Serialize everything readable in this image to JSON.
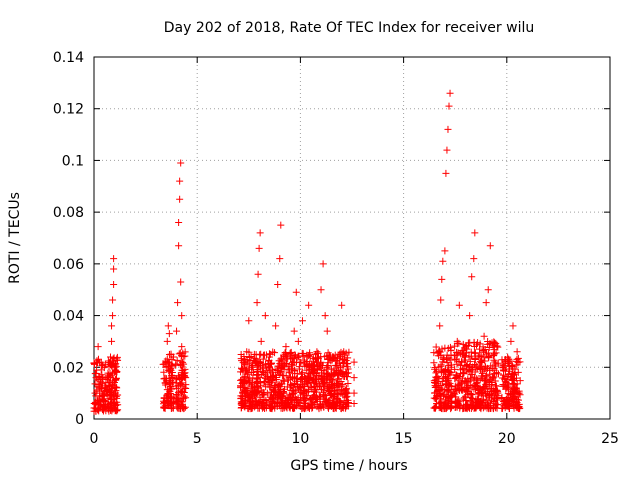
{
  "chart_data": {
    "type": "scatter",
    "title": "Day 202 of 2018, Rate Of TEC Index for receiver wilu",
    "xlabel": "GPS time / hours",
    "ylabel": "ROTI / TECUs",
    "xlim": [
      0,
      25
    ],
    "ylim": [
      0,
      0.14
    ],
    "x_ticks": [
      0,
      5,
      10,
      15,
      20,
      25
    ],
    "y_ticks": [
      0,
      0.02,
      0.04,
      0.06,
      0.08,
      0.1,
      0.12,
      0.14
    ],
    "x_tick_labels": [
      "0",
      "5",
      "10",
      "15",
      "20",
      "25"
    ],
    "y_tick_labels": [
      "0",
      "0.02",
      "0.04",
      "0.06",
      "0.08",
      "0.1",
      "0.12",
      "0.14"
    ],
    "grid": true,
    "marker": "+",
    "color": "#ff0000",
    "points": [
      [
        0.05,
        0.01
      ],
      [
        0.1,
        0.016
      ],
      [
        0.15,
        0.022
      ],
      [
        0.2,
        0.028
      ],
      [
        0.25,
        0.012
      ],
      [
        0.3,
        0.007
      ],
      [
        0.35,
        0.019
      ],
      [
        0.4,
        0.014
      ],
      [
        0.5,
        0.009
      ],
      [
        0.55,
        0.021
      ],
      [
        0.6,
        0.011
      ],
      [
        0.65,
        0.005
      ],
      [
        0.7,
        0.017
      ],
      [
        0.75,
        0.013
      ],
      [
        0.8,
        0.024
      ],
      [
        0.85,
        0.03
      ],
      [
        0.85,
        0.036
      ],
      [
        0.9,
        0.04
      ],
      [
        0.9,
        0.046
      ],
      [
        0.95,
        0.052
      ],
      [
        0.95,
        0.058
      ],
      [
        0.95,
        0.062
      ],
      [
        1.0,
        0.02
      ],
      [
        1.0,
        0.01
      ],
      [
        1.05,
        0.015
      ],
      [
        1.1,
        0.008
      ],
      [
        3.4,
        0.008
      ],
      [
        3.45,
        0.014
      ],
      [
        3.5,
        0.02
      ],
      [
        3.55,
        0.03
      ],
      [
        3.6,
        0.036
      ],
      [
        3.65,
        0.033
      ],
      [
        3.7,
        0.012
      ],
      [
        3.75,
        0.006
      ],
      [
        3.8,
        0.018
      ],
      [
        3.85,
        0.024
      ],
      [
        4.0,
        0.034
      ],
      [
        4.05,
        0.045
      ],
      [
        4.1,
        0.067
      ],
      [
        4.1,
        0.076
      ],
      [
        4.15,
        0.085
      ],
      [
        4.15,
        0.092
      ],
      [
        4.2,
        0.099
      ],
      [
        4.2,
        0.053
      ],
      [
        4.25,
        0.04
      ],
      [
        4.25,
        0.028
      ],
      [
        4.3,
        0.016
      ],
      [
        4.35,
        0.008
      ],
      [
        4.4,
        0.012
      ],
      [
        7.2,
        0.01
      ],
      [
        7.3,
        0.016
      ],
      [
        7.4,
        0.026
      ],
      [
        7.5,
        0.038
      ],
      [
        7.6,
        0.008
      ],
      [
        7.7,
        0.02
      ],
      [
        7.8,
        0.012
      ],
      [
        7.9,
        0.045
      ],
      [
        7.95,
        0.056
      ],
      [
        8.0,
        0.066
      ],
      [
        8.05,
        0.072
      ],
      [
        8.1,
        0.03
      ],
      [
        8.2,
        0.018
      ],
      [
        8.3,
        0.04
      ],
      [
        8.4,
        0.01
      ],
      [
        8.5,
        0.024
      ],
      [
        8.6,
        0.014
      ],
      [
        8.8,
        0.036
      ],
      [
        8.9,
        0.052
      ],
      [
        9.0,
        0.062
      ],
      [
        9.05,
        0.075
      ],
      [
        9.1,
        0.02
      ],
      [
        9.2,
        0.01
      ],
      [
        9.3,
        0.028
      ],
      [
        9.5,
        0.016
      ],
      [
        9.7,
        0.034
      ],
      [
        9.8,
        0.049
      ],
      [
        9.9,
        0.03
      ],
      [
        10.0,
        0.012
      ],
      [
        10.1,
        0.038
      ],
      [
        10.2,
        0.022
      ],
      [
        10.4,
        0.044
      ],
      [
        10.5,
        0.008
      ],
      [
        10.6,
        0.018
      ],
      [
        10.8,
        0.026
      ],
      [
        11.0,
        0.05
      ],
      [
        11.1,
        0.06
      ],
      [
        11.2,
        0.04
      ],
      [
        11.3,
        0.034
      ],
      [
        11.4,
        0.014
      ],
      [
        11.6,
        0.024
      ],
      [
        11.8,
        0.008
      ],
      [
        12.0,
        0.044
      ],
      [
        12.1,
        0.026
      ],
      [
        12.2,
        0.018
      ],
      [
        12.3,
        0.01
      ],
      [
        12.6,
        0.016
      ],
      [
        12.6,
        0.022
      ],
      [
        12.6,
        0.01
      ],
      [
        12.6,
        0.006
      ],
      [
        16.5,
        0.01
      ],
      [
        16.6,
        0.016
      ],
      [
        16.7,
        0.026
      ],
      [
        16.75,
        0.036
      ],
      [
        16.8,
        0.046
      ],
      [
        16.85,
        0.054
      ],
      [
        16.9,
        0.061
      ],
      [
        17.0,
        0.065
      ],
      [
        17.05,
        0.095
      ],
      [
        17.1,
        0.104
      ],
      [
        17.15,
        0.112
      ],
      [
        17.2,
        0.121
      ],
      [
        17.25,
        0.126
      ],
      [
        17.3,
        0.02
      ],
      [
        17.4,
        0.01
      ],
      [
        17.6,
        0.03
      ],
      [
        17.7,
        0.044
      ],
      [
        17.8,
        0.014
      ],
      [
        18.0,
        0.024
      ],
      [
        18.2,
        0.04
      ],
      [
        18.3,
        0.055
      ],
      [
        18.4,
        0.062
      ],
      [
        18.45,
        0.072
      ],
      [
        18.5,
        0.02
      ],
      [
        18.7,
        0.012
      ],
      [
        18.9,
        0.032
      ],
      [
        19.0,
        0.045
      ],
      [
        19.1,
        0.05
      ],
      [
        19.2,
        0.067
      ],
      [
        19.3,
        0.016
      ],
      [
        19.5,
        0.008
      ],
      [
        19.8,
        0.02
      ],
      [
        20.0,
        0.012
      ],
      [
        20.2,
        0.03
      ],
      [
        20.3,
        0.036
      ],
      [
        20.4,
        0.018
      ],
      [
        20.5,
        0.026
      ],
      [
        20.6,
        0.01
      ]
    ],
    "bands": [
      {
        "x": [
          0.0,
          1.15
        ],
        "y": [
          0.003,
          0.024
        ]
      },
      {
        "x": [
          3.35,
          3.85
        ],
        "y": [
          0.004,
          0.026
        ]
      },
      {
        "x": [
          3.95,
          4.45
        ],
        "y": [
          0.004,
          0.026
        ]
      },
      {
        "x": [
          7.1,
          12.35
        ],
        "y": [
          0.004,
          0.026
        ]
      },
      {
        "x": [
          16.45,
          17.35
        ],
        "y": [
          0.004,
          0.028
        ]
      },
      {
        "x": [
          17.45,
          19.6
        ],
        "y": [
          0.004,
          0.03
        ]
      },
      {
        "x": [
          19.75,
          20.65
        ],
        "y": [
          0.004,
          0.024
        ]
      }
    ]
  }
}
